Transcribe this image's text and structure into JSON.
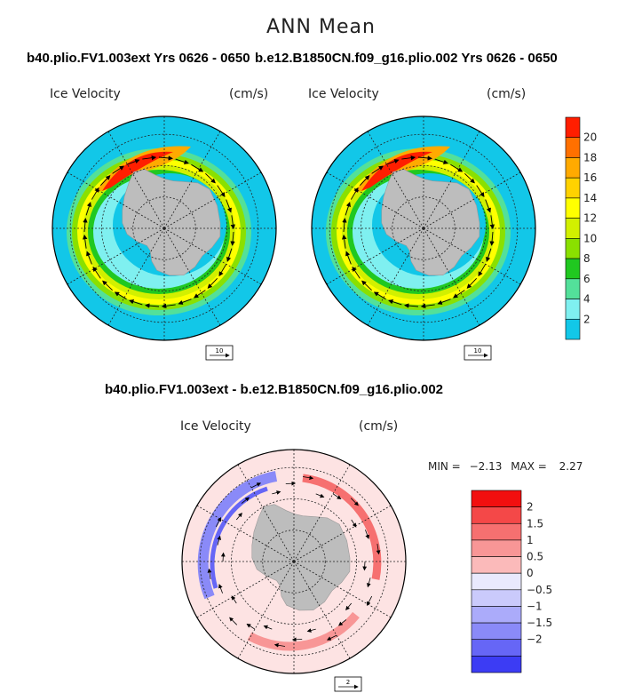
{
  "main_title": "ANN Mean",
  "panels": {
    "left": {
      "title": "b40.plio.FV1.003ext  Yrs 0626 - 0650",
      "variable": "Ice Velocity",
      "units": "(cm/s)",
      "ref_vector": "10"
    },
    "right": {
      "title": "b.e12.B1850CN.f09_g16.plio.002  Yrs 0626 - 0650",
      "variable": "Ice Velocity",
      "units": "(cm/s)",
      "ref_vector": "10"
    },
    "diff": {
      "title": "b40.plio.FV1.003ext - b.e12.B1850CN.f09_g16.plio.002",
      "variable": "Ice Velocity",
      "units": "(cm/s)",
      "ref_vector": "2",
      "min_label": "MIN =",
      "min_value": "−2.13",
      "max_label": "MAX =",
      "max_value": "2.27"
    }
  },
  "colors": {
    "ocean_fill": "#12c7e8",
    "land": "#bdbdbd",
    "diff_background": "#fde3e3",
    "abs_scale": [
      "#12c7e8",
      "#7ff0f0",
      "#53e09a",
      "#20c820",
      "#8ae000",
      "#d2f000",
      "#ffff00",
      "#ffd200",
      "#ffaa00",
      "#ff7000",
      "#ff1e00"
    ],
    "diff_scale": [
      "#3c3cf4",
      "#6666f6",
      "#8a8af8",
      "#ababfa",
      "#cacafb",
      "#e9e9fd",
      "#fde3e3",
      "#fbbaba",
      "#f89696",
      "#f67070",
      "#f44848",
      "#f20f0f"
    ]
  },
  "chart_data": [
    {
      "type": "heatmap",
      "projection": "south-polar-stereographic",
      "title": "b40.plio.FV1.003ext  Yrs 0626 - 0650",
      "field": "Ice Velocity",
      "units": "cm/s",
      "colorbar_ticks": [
        "2",
        "4",
        "6",
        "8",
        "10",
        "12",
        "14",
        "16",
        "18",
        "20"
      ],
      "colorbar_range": [
        0,
        22
      ],
      "reference_vector": 10,
      "grid": true
    },
    {
      "type": "heatmap",
      "projection": "south-polar-stereographic",
      "title": "b.e12.B1850CN.f09_g16.plio.002  Yrs 0626 - 0650",
      "field": "Ice Velocity",
      "units": "cm/s",
      "colorbar_ticks": [
        "2",
        "4",
        "6",
        "8",
        "10",
        "12",
        "14",
        "16",
        "18",
        "20"
      ],
      "colorbar_range": [
        0,
        22
      ],
      "reference_vector": 10,
      "grid": true
    },
    {
      "type": "heatmap",
      "projection": "south-polar-stereographic",
      "title": "b40.plio.FV1.003ext - b.e12.B1850CN.f09_g16.plio.002",
      "field": "Ice Velocity",
      "units": "cm/s",
      "min": -2.13,
      "max": 2.27,
      "colorbar_ticks": [
        "2",
        "1.5",
        "1",
        "0.5",
        "0",
        "−0.5",
        "−1",
        "−1.5",
        "−2"
      ],
      "colorbar_range": [
        -2.5,
        2.5
      ],
      "reference_vector": 2,
      "grid": true
    }
  ]
}
